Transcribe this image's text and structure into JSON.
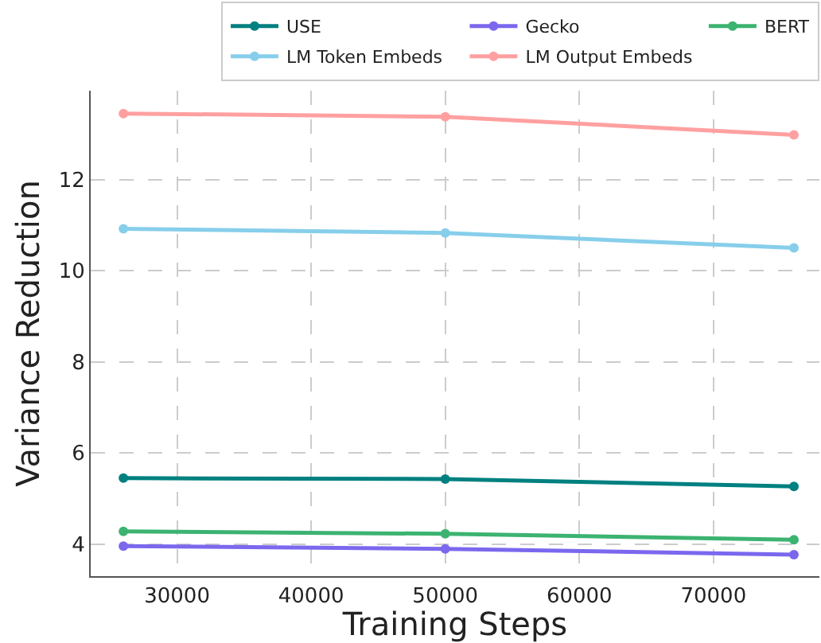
{
  "chart_data": {
    "type": "line",
    "xlabel": "Training Steps",
    "ylabel": "Variance Reduction",
    "x": [
      26000,
      50000,
      76000
    ],
    "series": [
      {
        "name": "USE",
        "color": "#008080",
        "values": [
          5.45,
          5.43,
          5.27
        ]
      },
      {
        "name": "Gecko",
        "color": "#7b68ee",
        "values": [
          3.96,
          3.9,
          3.77
        ]
      },
      {
        "name": "BERT",
        "color": "#3cb371",
        "values": [
          4.28,
          4.23,
          4.1
        ]
      },
      {
        "name": "LM Token Embeds",
        "color": "#87ceeb",
        "values": [
          10.92,
          10.83,
          10.5
        ]
      },
      {
        "name": "LM Output Embeds",
        "color": "#ffa0a0",
        "values": [
          13.45,
          13.38,
          12.98
        ]
      }
    ],
    "xlim": [
      23560,
      77900
    ],
    "xticks": [
      30000,
      40000,
      50000,
      60000,
      70000
    ],
    "ylim": [
      3.3,
      13.95
    ],
    "yticks": [
      4,
      6,
      8,
      10,
      12
    ],
    "grid": true,
    "legend": "top",
    "marker": "circle",
    "line_style": "solid"
  }
}
